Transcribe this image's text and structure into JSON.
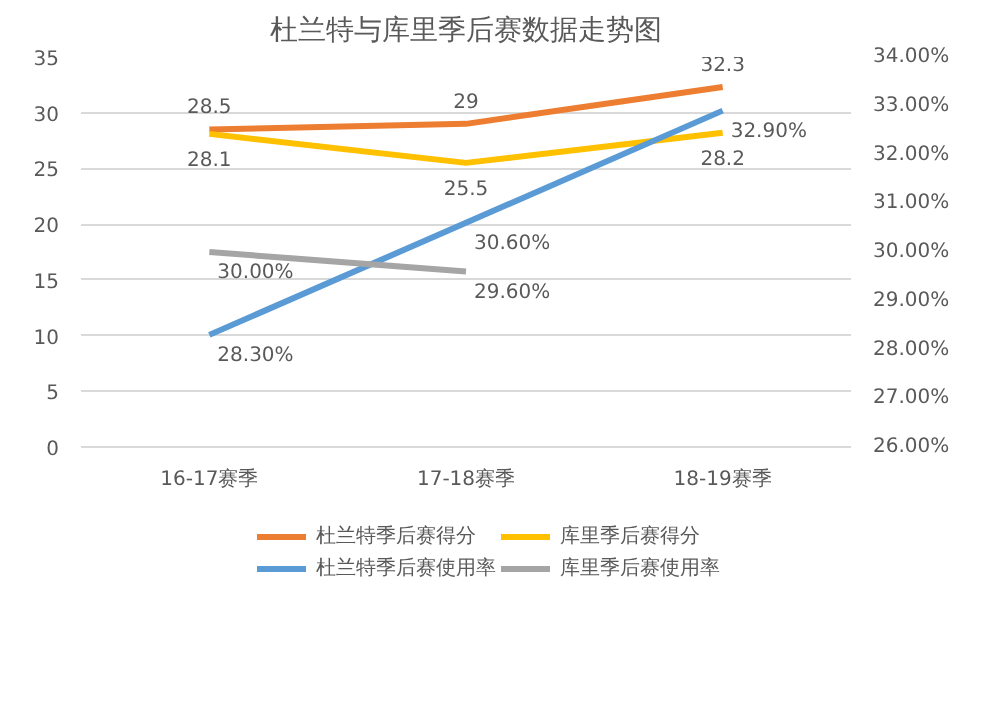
{
  "chart_data": {
    "type": "line",
    "title": "杜兰特与库里季后赛数据走势图",
    "categories": [
      "16-17赛季",
      "17-18赛季",
      "18-19赛季"
    ],
    "ylim": [
      0,
      35
    ],
    "yticks": [
      0,
      5,
      10,
      15,
      20,
      25,
      30,
      35
    ],
    "y2lim": [
      26,
      34
    ],
    "y2ticks": [
      {
        "value": 26,
        "label": "26.00%"
      },
      {
        "value": 27,
        "label": "27.00%"
      },
      {
        "value": 28,
        "label": "28.00%"
      },
      {
        "value": 29,
        "label": "29.00%"
      },
      {
        "value": 30,
        "label": "30.00%"
      },
      {
        "value": 31,
        "label": "31.00%"
      },
      {
        "value": 32,
        "label": "32.00%"
      },
      {
        "value": 33,
        "label": "33.00%"
      },
      {
        "value": 34,
        "label": "34.00%"
      }
    ],
    "grid": "y",
    "legend": "bottom",
    "line_style": "solid",
    "series": [
      {
        "name": "杜兰特季后赛得分",
        "color": "#ed7d31",
        "values": [
          28.5,
          29,
          32.3
        ],
        "value_labels": [
          "28.5",
          "29",
          "32.3"
        ]
      },
      {
        "name": "库里季后赛得分",
        "color": "#ffc000",
        "values": [
          28.1,
          25.5,
          28.2
        ],
        "value_labels": [
          "28.1",
          "25.5",
          "28.2"
        ]
      },
      {
        "name": "杜兰特季后赛使用率",
        "color": "#5b9bd5",
        "axis": "y2",
        "values": [
          28.3,
          30.6,
          32.9
        ],
        "value_labels": [
          "28.30%",
          "30.60%",
          "32.90%"
        ]
      },
      {
        "name": "库里季后赛使用率",
        "color": "#a5a5a5",
        "axis": "y2",
        "values": [
          30.0,
          29.6,
          null
        ],
        "value_labels": [
          "30.00%",
          "29.60%",
          null
        ]
      }
    ]
  }
}
